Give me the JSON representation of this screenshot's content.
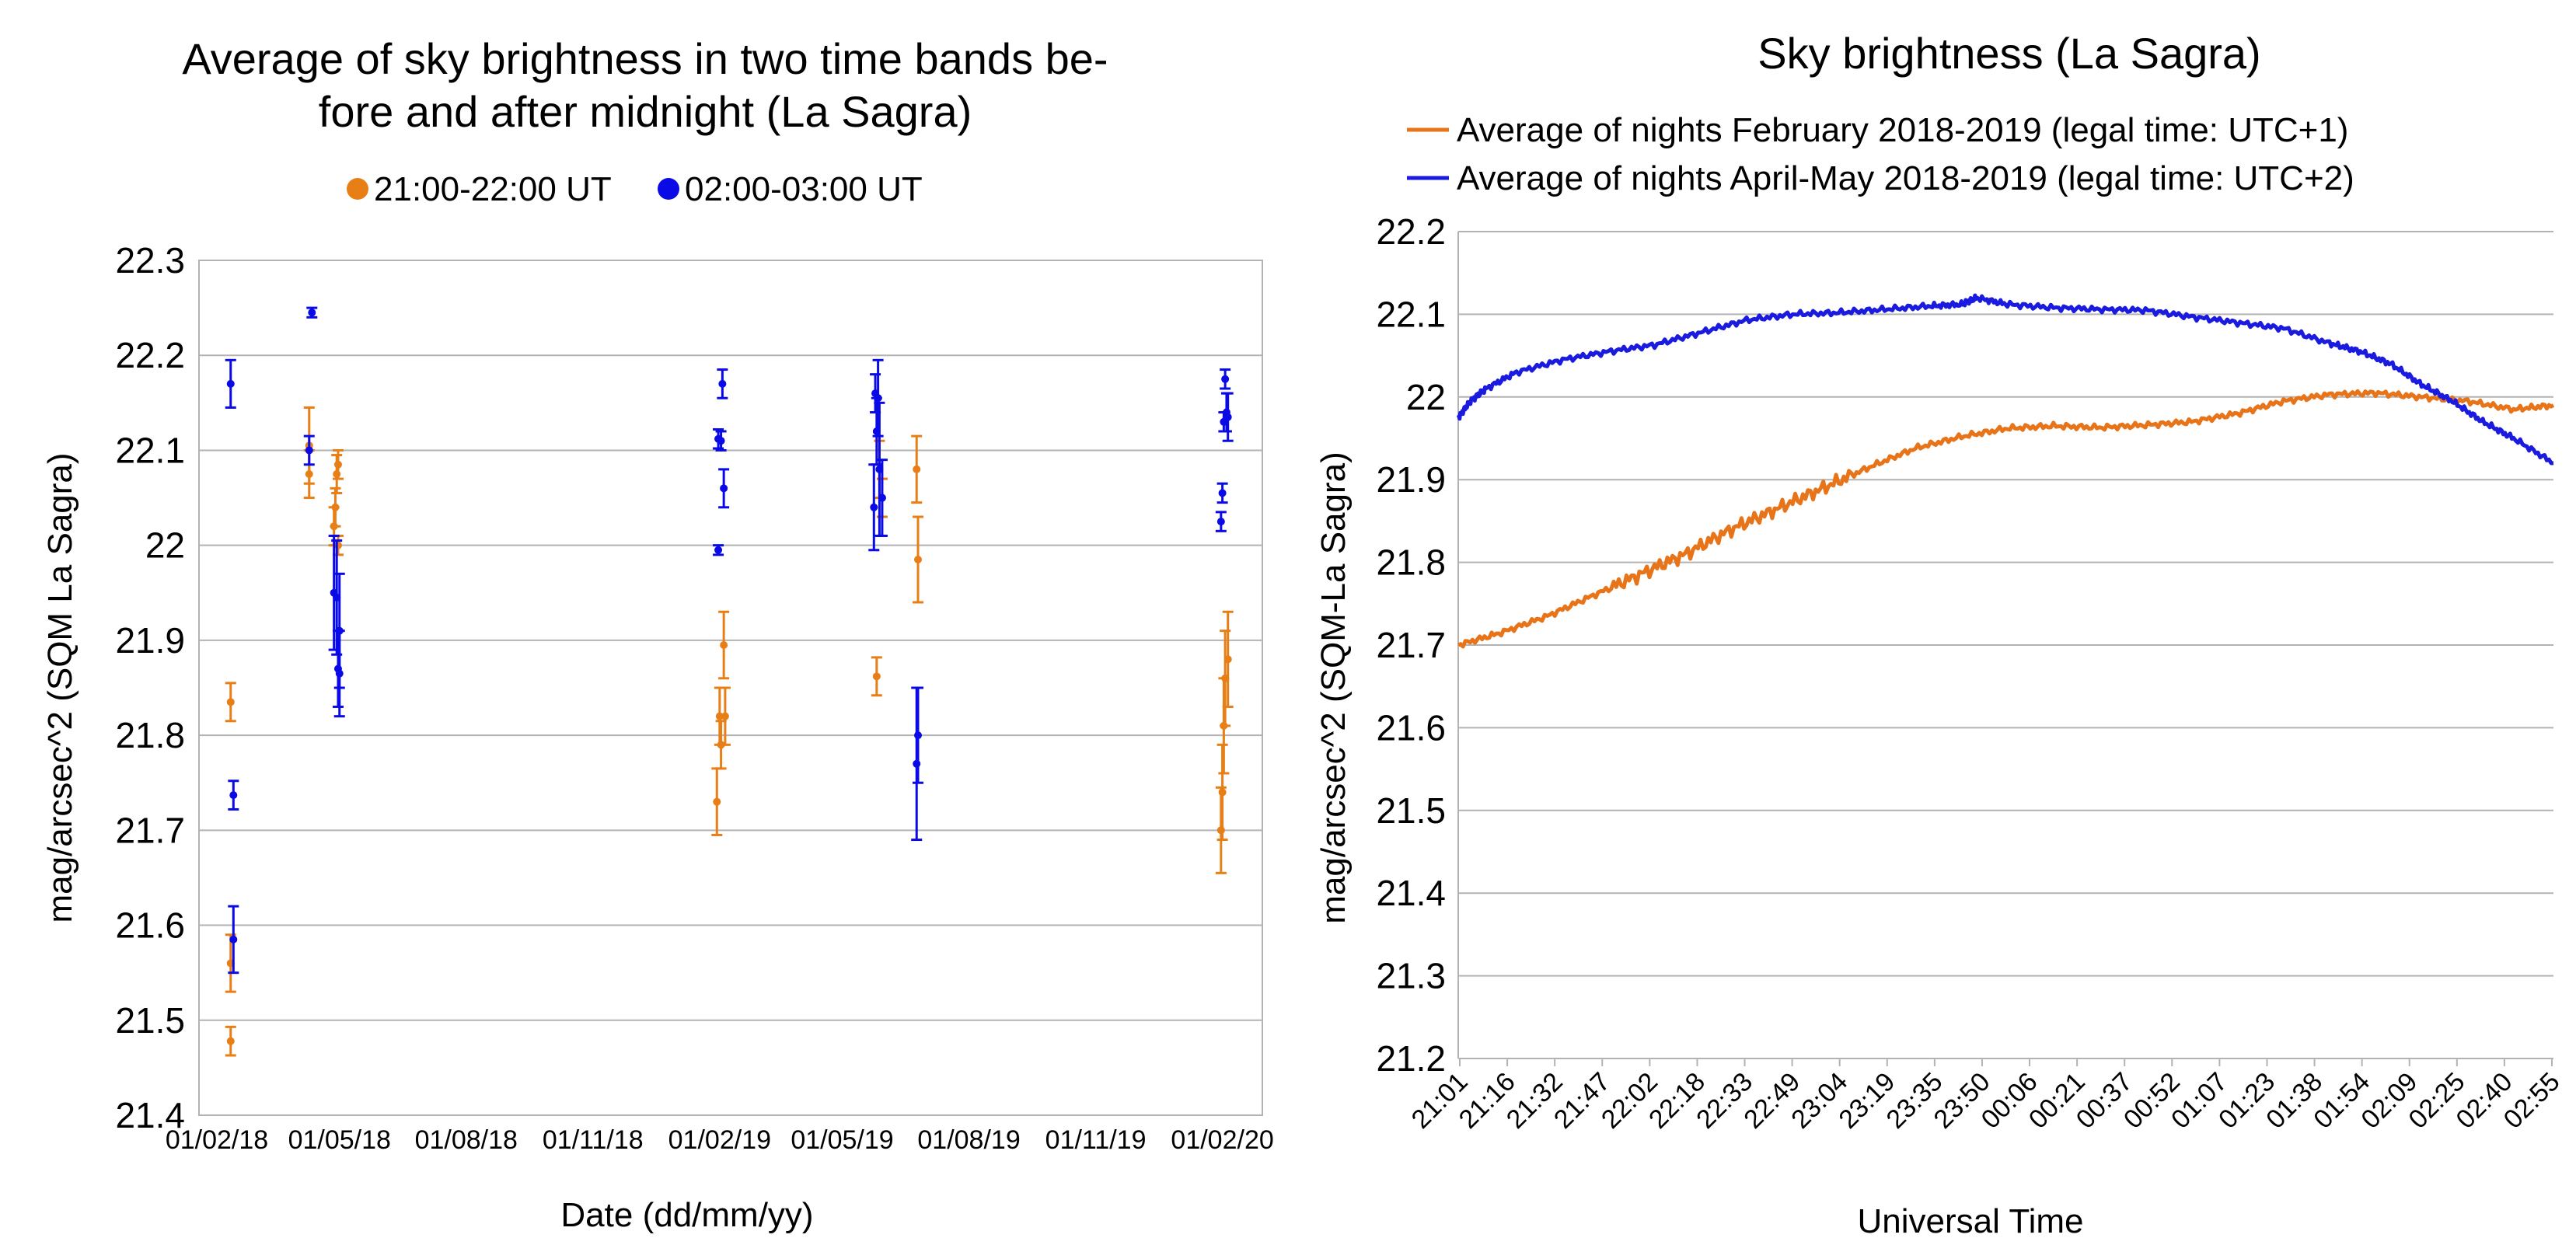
{
  "chart_data": [
    {
      "type": "scatter",
      "title_lines": [
        "Average of sky brightness in two time bands be-",
        "fore and after midnight (La Sagra)"
      ],
      "xlabel": "Date (dd/mm/yy)",
      "ylabel": "mag/arcsec^2 (SQM La Sagra)",
      "ylim": [
        21.4,
        22.3
      ],
      "yticks": [
        "22.3",
        "22.2",
        "22.1",
        "22",
        "21.9",
        "21.8",
        "21.7",
        "21.6",
        "21.5",
        "21.4"
      ],
      "xticks": [
        "01/02/18",
        "01/05/18",
        "01/08/18",
        "01/11/18",
        "01/02/19",
        "01/05/19",
        "01/08/19",
        "01/11/19",
        "01/02/20"
      ],
      "x_unit": "days since 01/02/18",
      "xlim": [
        -13,
        759
      ],
      "legend_position": "top",
      "series": [
        {
          "name": "21:00-22:00 UT",
          "color": "#e87f16",
          "points": [
            {
              "x": 10,
              "y": 21.835,
              "err": 0.02
            },
            {
              "x": 10,
              "y": 21.478,
              "err": 0.015
            },
            {
              "x": 10,
              "y": 21.56,
              "err": 0.03
            },
            {
              "x": 67,
              "y": 22.075,
              "err": 0.025
            },
            {
              "x": 67,
              "y": 22.105,
              "err": 0.04
            },
            {
              "x": 85,
              "y": 22.02,
              "err": 0.02
            },
            {
              "x": 86,
              "y": 22.04,
              "err": 0.02
            },
            {
              "x": 87,
              "y": 22.075,
              "err": 0.02
            },
            {
              "x": 88,
              "y": 22.085,
              "err": 0.015
            },
            {
              "x": 88,
              "y": 22.0,
              "err": 0.01
            },
            {
              "x": 363,
              "y": 21.73,
              "err": 0.035
            },
            {
              "x": 365,
              "y": 21.82,
              "err": 0.03
            },
            {
              "x": 366,
              "y": 21.79,
              "err": 0.025
            },
            {
              "x": 368,
              "y": 21.895,
              "err": 0.035
            },
            {
              "x": 369,
              "y": 21.82,
              "err": 0.03
            },
            {
              "x": 479,
              "y": 21.862,
              "err": 0.02
            },
            {
              "x": 481,
              "y": 22.08,
              "err": 0.03
            },
            {
              "x": 483,
              "y": 22.05,
              "err": 0.02
            },
            {
              "x": 508,
              "y": 22.08,
              "err": 0.035
            },
            {
              "x": 509,
              "y": 21.985,
              "err": 0.045
            },
            {
              "x": 729,
              "y": 21.7,
              "err": 0.045
            },
            {
              "x": 730,
              "y": 21.74,
              "err": 0.05
            },
            {
              "x": 731,
              "y": 21.81,
              "err": 0.05
            },
            {
              "x": 732,
              "y": 21.86,
              "err": 0.05
            },
            {
              "x": 734,
              "y": 21.88,
              "err": 0.05
            }
          ]
        },
        {
          "name": "02:00-03:00 UT",
          "color": "#0a0ae6",
          "points": [
            {
              "x": 10,
              "y": 22.17,
              "err": 0.025
            },
            {
              "x": 12,
              "y": 21.737,
              "err": 0.015
            },
            {
              "x": 12,
              "y": 21.585,
              "err": 0.035
            },
            {
              "x": 67,
              "y": 22.1,
              "err": 0.015
            },
            {
              "x": 69,
              "y": 22.245,
              "err": 0.005
            },
            {
              "x": 85,
              "y": 21.95,
              "err": 0.06
            },
            {
              "x": 87,
              "y": 21.945,
              "err": 0.06
            },
            {
              "x": 88,
              "y": 21.87,
              "err": 0.04
            },
            {
              "x": 89,
              "y": 21.865,
              "err": 0.045
            },
            {
              "x": 89,
              "y": 21.91,
              "err": 0.06
            },
            {
              "x": 364,
              "y": 22.112,
              "err": 0.01
            },
            {
              "x": 364,
              "y": 21.995,
              "err": 0.005
            },
            {
              "x": 366,
              "y": 22.11,
              "err": 0.01
            },
            {
              "x": 367,
              "y": 22.17,
              "err": 0.015
            },
            {
              "x": 368,
              "y": 22.06,
              "err": 0.02
            },
            {
              "x": 477,
              "y": 22.04,
              "err": 0.045
            },
            {
              "x": 478,
              "y": 22.16,
              "err": 0.02
            },
            {
              "x": 479,
              "y": 22.12,
              "err": 0.035
            },
            {
              "x": 480,
              "y": 22.155,
              "err": 0.04
            },
            {
              "x": 481,
              "y": 22.08,
              "err": 0.07
            },
            {
              "x": 483,
              "y": 22.05,
              "err": 0.04
            },
            {
              "x": 508,
              "y": 21.77,
              "err": 0.08
            },
            {
              "x": 509,
              "y": 21.8,
              "err": 0.05
            },
            {
              "x": 729,
              "y": 22.025,
              "err": 0.01
            },
            {
              "x": 730,
              "y": 22.055,
              "err": 0.01
            },
            {
              "x": 731,
              "y": 22.13,
              "err": 0.01
            },
            {
              "x": 732,
              "y": 22.175,
              "err": 0.01
            },
            {
              "x": 733,
              "y": 22.14,
              "err": 0.02
            },
            {
              "x": 734,
              "y": 22.135,
              "err": 0.025
            }
          ]
        }
      ]
    },
    {
      "type": "line",
      "title": "Sky brightness (La Sagra)",
      "xlabel": "Universal Time",
      "ylabel": "mag/arcsec^2 (SQM-La Sagra)",
      "ylim": [
        21.2,
        22.2
      ],
      "yticks": [
        "22.2",
        "22.1",
        "22",
        "21.9",
        "21.8",
        "21.7",
        "21.6",
        "21.5",
        "21.4",
        "21.3",
        "21.2"
      ],
      "xticks": [
        "21:01",
        "21:16",
        "21:32",
        "21:47",
        "22:02",
        "22:18",
        "22:33",
        "22:49",
        "23:04",
        "23:19",
        "23:35",
        "23:50",
        "00:06",
        "00:21",
        "00:37",
        "00:52",
        "01:07",
        "01:23",
        "01:38",
        "01:54",
        "02:09",
        "02:25",
        "02:40",
        "02:55"
      ],
      "x_unit": "minutes after 21:00 UT",
      "xlim": [
        1,
        358
      ],
      "legend_position": "top",
      "series": [
        {
          "name": "Average of nights February 2018-2019 (legal time: UTC+1)",
          "color": "#e8741a",
          "x": [
            1,
            15,
            30,
            45,
            60,
            75,
            90,
            105,
            120,
            135,
            150,
            165,
            180,
            195,
            210,
            225,
            240,
            255,
            270,
            285,
            300,
            315,
            330,
            345,
            358
          ],
          "y": [
            21.7,
            21.715,
            21.735,
            21.76,
            21.785,
            21.81,
            21.84,
            21.865,
            21.89,
            21.915,
            21.938,
            21.952,
            21.962,
            21.965,
            21.963,
            21.966,
            21.97,
            21.98,
            21.995,
            22.003,
            22.005,
            22.0,
            21.995,
            21.985,
            21.99
          ]
        },
        {
          "name": "Average of nights April-May 2018-2019 (legal time: UTC+2)",
          "color": "#1b1be0",
          "x": [
            1,
            5,
            10,
            20,
            35,
            50,
            65,
            80,
            95,
            110,
            125,
            140,
            155,
            165,
            170,
            180,
            195,
            210,
            225,
            240,
            255,
            270,
            285,
            295,
            305,
            315,
            325,
            335,
            345,
            358
          ],
          "y": [
            21.975,
            21.995,
            22.01,
            22.03,
            22.045,
            22.055,
            22.063,
            22.078,
            22.093,
            22.1,
            22.102,
            22.106,
            22.11,
            22.112,
            22.12,
            22.112,
            22.108,
            22.106,
            22.105,
            22.097,
            22.09,
            22.083,
            22.065,
            22.055,
            22.04,
            22.015,
            21.995,
            21.97,
            21.95,
            21.92
          ]
        }
      ]
    }
  ]
}
